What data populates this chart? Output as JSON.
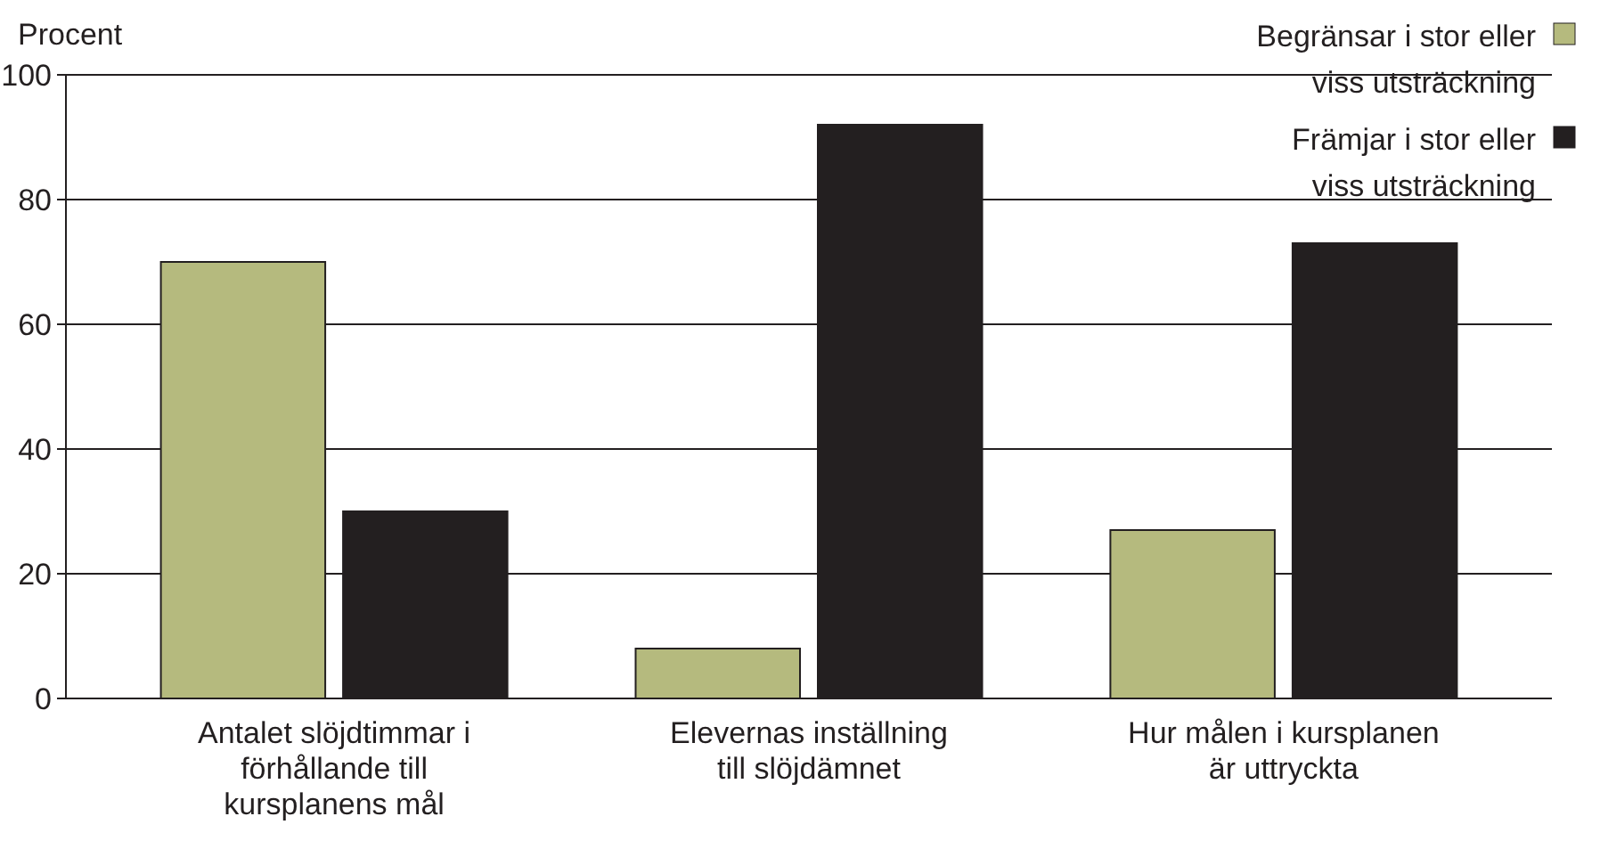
{
  "chart_data": {
    "type": "bar",
    "ylabel": "Procent",
    "categories": [
      "Antalet slöjdtimmar i förhållande till kursplanens mål",
      "Elevernas inställning till slöjdämnet",
      "Hur målen i kursplanen är uttryckta"
    ],
    "series": [
      {
        "name": "Begränsar i stor eller viss utsträckning",
        "color": "#b5ba7e",
        "values": [
          70,
          8,
          27
        ]
      },
      {
        "name": "Främjar i stor eller viss utsträckning",
        "color": "#231f20",
        "values": [
          30,
          92,
          73
        ]
      }
    ],
    "ylim": [
      0,
      100
    ],
    "yticks": [
      0,
      20,
      40,
      60,
      80,
      100
    ],
    "grid": "y",
    "legend": "top right"
  }
}
